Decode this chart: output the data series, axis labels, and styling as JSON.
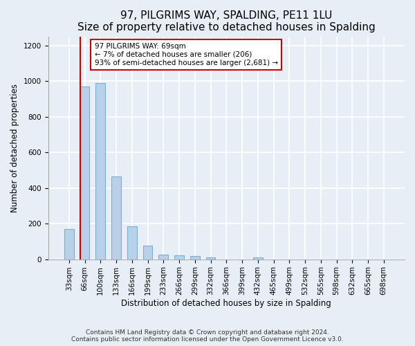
{
  "title1": "97, PILGRIMS WAY, SPALDING, PE11 1LU",
  "title2": "Size of property relative to detached houses in Spalding",
  "xlabel": "Distribution of detached houses by size in Spalding",
  "ylabel": "Number of detached properties",
  "categories": [
    "33sqm",
    "66sqm",
    "100sqm",
    "133sqm",
    "166sqm",
    "199sqm",
    "233sqm",
    "266sqm",
    "299sqm",
    "332sqm",
    "366sqm",
    "399sqm",
    "432sqm",
    "465sqm",
    "499sqm",
    "532sqm",
    "565sqm",
    "598sqm",
    "632sqm",
    "665sqm",
    "698sqm"
  ],
  "values": [
    170,
    970,
    990,
    465,
    185,
    75,
    27,
    22,
    17,
    10,
    0,
    0,
    12,
    0,
    0,
    0,
    0,
    0,
    0,
    0,
    0
  ],
  "bar_color": "#b8d0e8",
  "bar_edge_color": "#7aafd4",
  "highlight_line_color": "#cc0000",
  "annotation_text": "97 PILGRIMS WAY: 69sqm\n← 7% of detached houses are smaller (206)\n93% of semi-detached houses are larger (2,681) →",
  "annotation_box_color": "white",
  "annotation_box_edge_color": "#cc0000",
  "ylim": [
    0,
    1250
  ],
  "yticks": [
    0,
    200,
    400,
    600,
    800,
    1000,
    1200
  ],
  "footnote": "Contains HM Land Registry data © Crown copyright and database right 2024.\nContains public sector information licensed under the Open Government Licence v3.0.",
  "bg_color": "#e8eef5",
  "grid_color": "white",
  "title_fontsize": 11,
  "axis_fontsize": 8.5,
  "tick_fontsize": 7.5,
  "footnote_fontsize": 6.5
}
